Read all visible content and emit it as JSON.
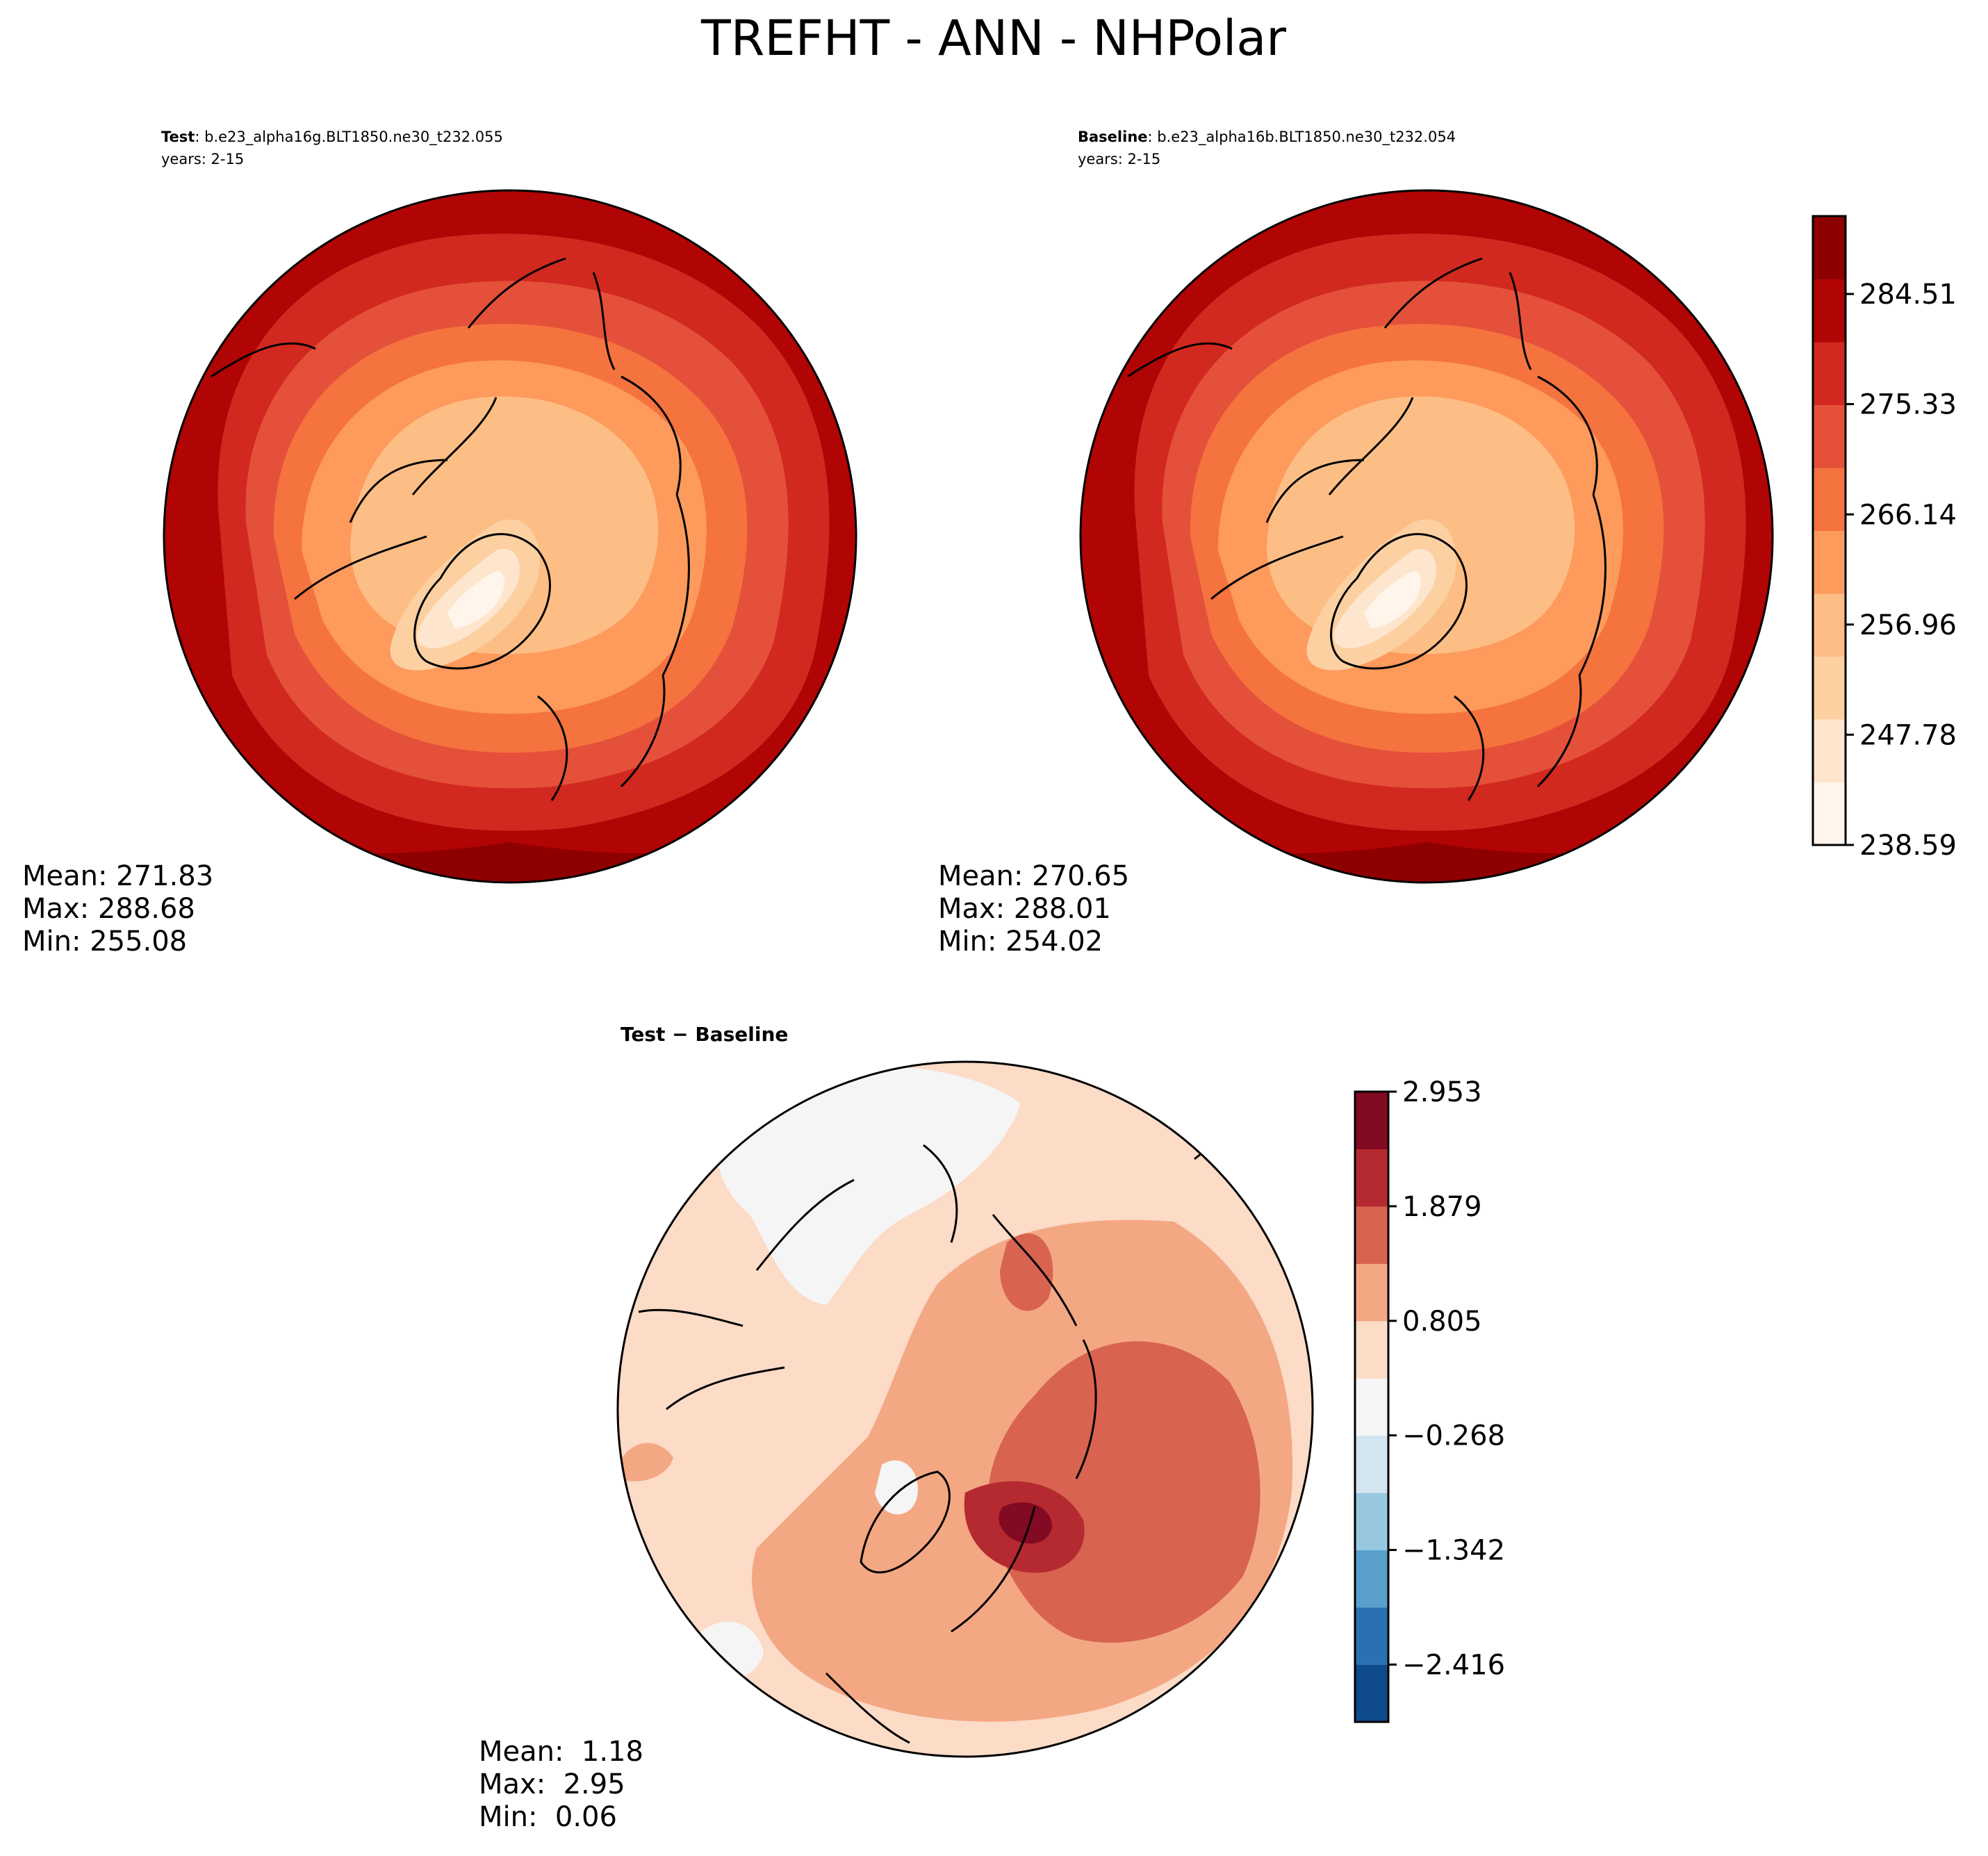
{
  "chart_data": {
    "type": "contour-map",
    "title": "TREFHT - ANN - NHPolar",
    "panels": [
      {
        "id": "test",
        "label_bold": "Test",
        "label_text": ": b.e23_alpha16g.BLT1850.ne30_t232.055",
        "years": "years: 2-15",
        "stats": [
          "Mean: 271.83",
          "Max: 288.68",
          "Min: 255.08"
        ],
        "mean": 271.83,
        "max": 288.68,
        "min": 255.08
      },
      {
        "id": "baseline",
        "label_bold": "Baseline",
        "label_text": ": b.e23_alpha16b.BLT1850.ne30_t232.054",
        "years": "years: 2-15",
        "stats": [
          "Mean: 270.65",
          "Max: 288.01",
          "Min: 254.02"
        ],
        "mean": 270.65,
        "max": 288.01,
        "min": 254.02
      },
      {
        "id": "diff",
        "label_bold": "Test − Baseline",
        "label_text": "",
        "years": "",
        "stats": [
          "Mean:  1.18",
          "Max:  2.95",
          "Min:  0.06"
        ],
        "mean": 1.18,
        "max": 2.95,
        "min": 0.06
      }
    ],
    "colorbar_main": {
      "ticks": [
        "238.59",
        "247.78",
        "256.96",
        "266.14",
        "275.33",
        "284.51"
      ],
      "tick_values": [
        238.59,
        247.78,
        256.96,
        266.14,
        275.33,
        284.51
      ],
      "range": [
        238.59,
        291.0
      ],
      "colors": [
        "#fff5eb",
        "#fee6ce",
        "#fdd0a2",
        "#fdbe85",
        "#fd9a5c",
        "#f4733f",
        "#e5503a",
        "#d1291f",
        "#b10404",
        "#8e0000"
      ]
    },
    "colorbar_diff": {
      "ticks": [
        "2.953",
        "1.879",
        "0.805",
        "−0.268",
        "−1.342",
        "−2.416"
      ],
      "tick_values": [
        2.953,
        1.879,
        0.805,
        -0.268,
        -1.342,
        -2.416
      ],
      "range": [
        -2.953,
        2.953
      ],
      "colors": [
        "#0f4a8a",
        "#2a71b2",
        "#589fcc",
        "#98c8e0",
        "#d2e5f0",
        "#f5f5f5",
        "#fcdbc7",
        "#f4a783",
        "#d76350",
        "#b52a30",
        "#820a22"
      ]
    }
  }
}
